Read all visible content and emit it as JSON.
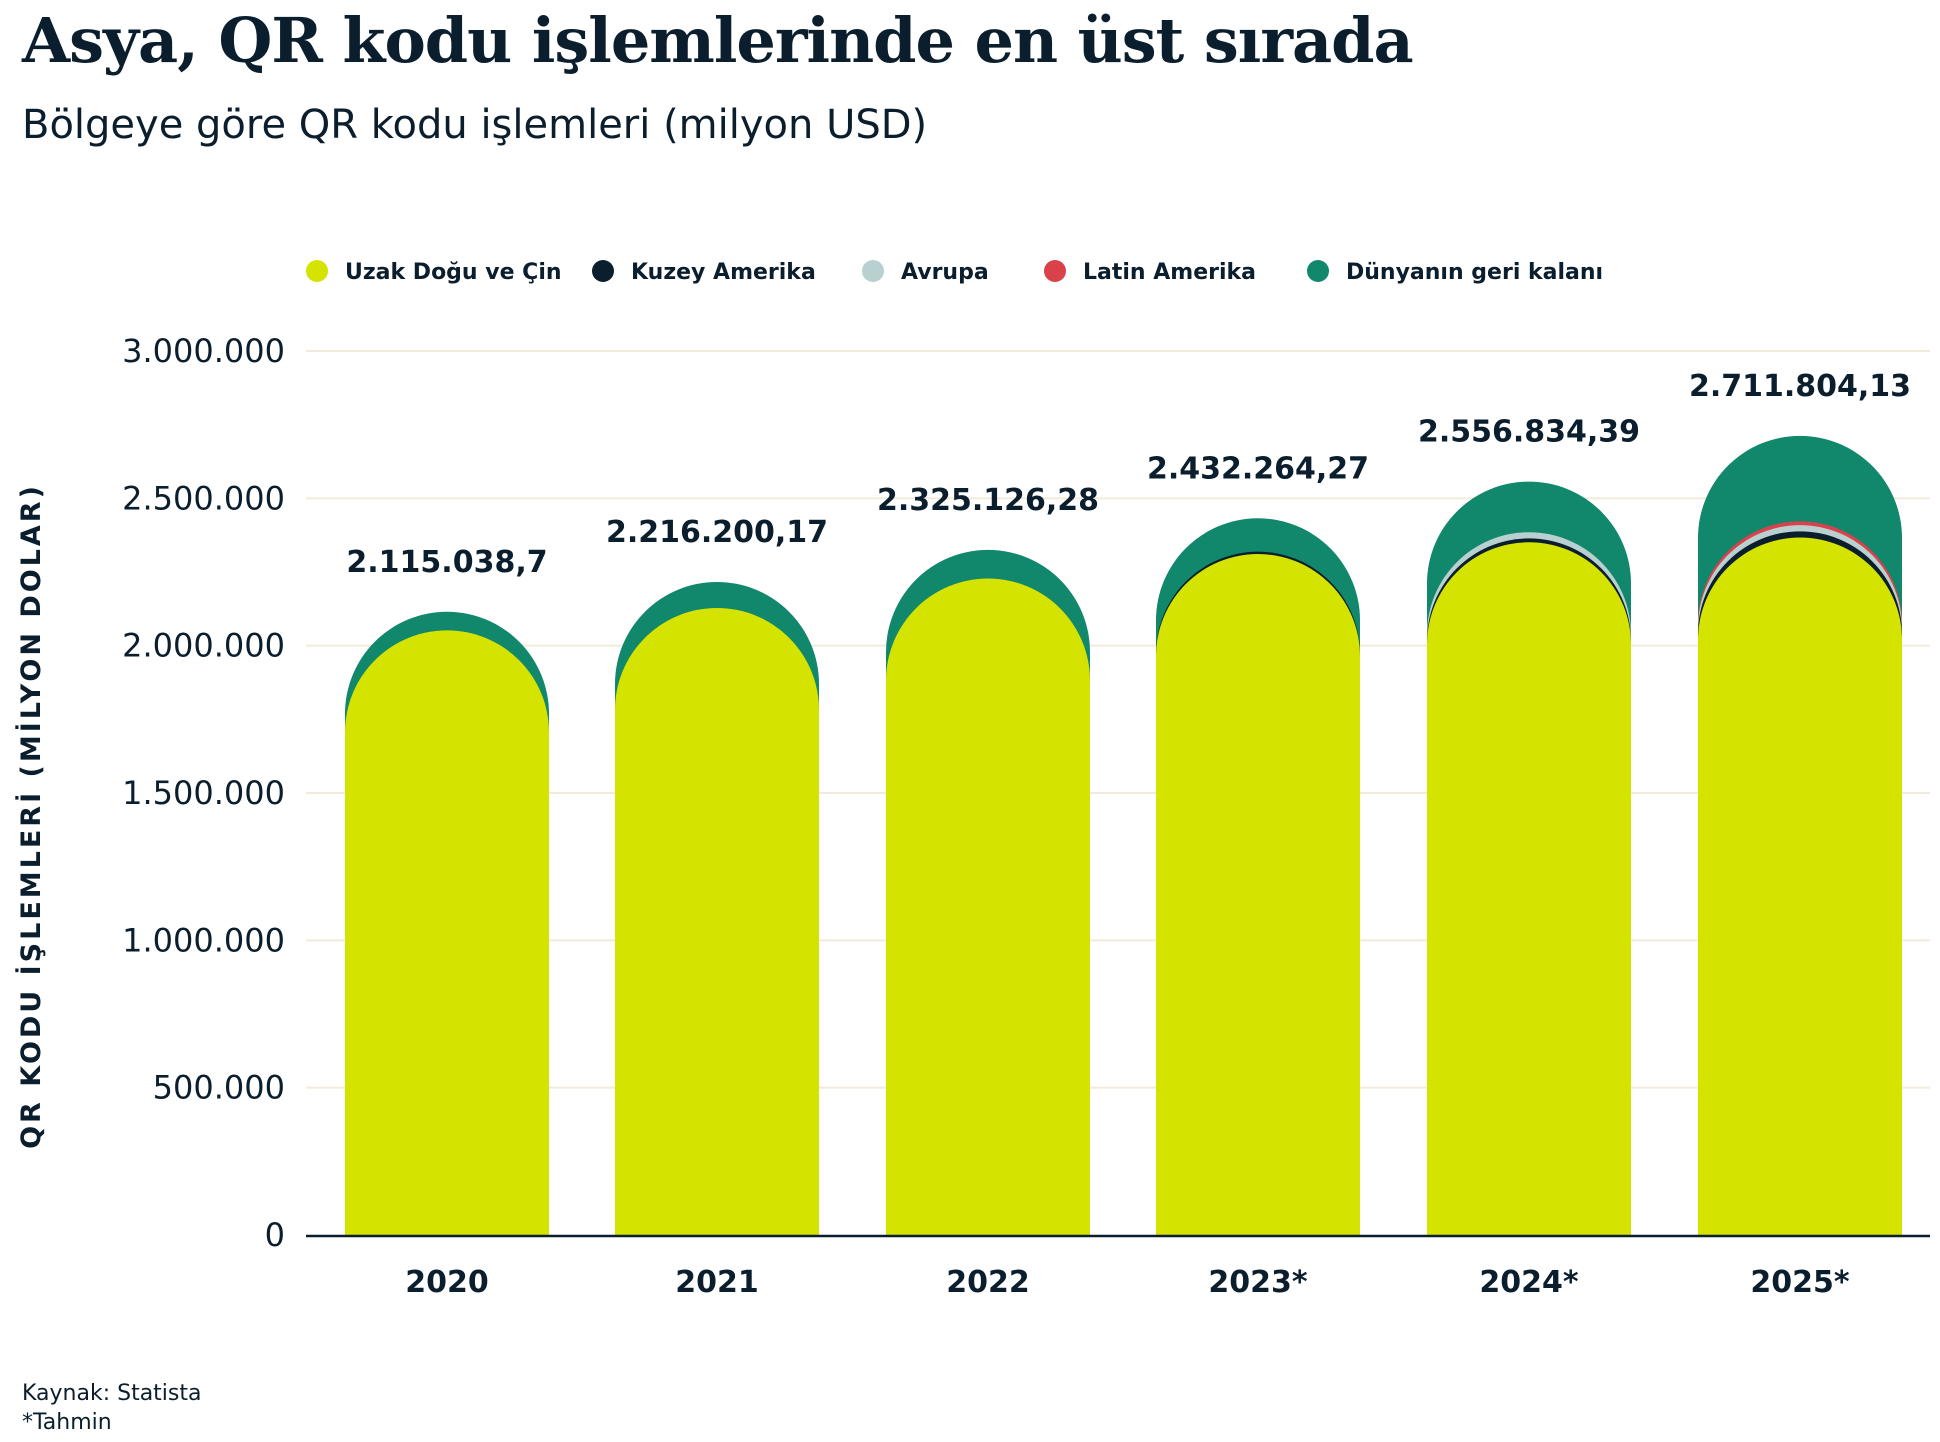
{
  "header": {
    "title": "Asya, QR kodu işlemlerinde en üst sırada",
    "subtitle": "Bölgeye göre QR kodu işlemleri (milyon USD)"
  },
  "footer": {
    "source": "Kaynak: Statista",
    "note": "*Tahmin"
  },
  "chart_data": {
    "type": "bar",
    "stacked": true,
    "title": "Asya, QR kodu işlemlerinde en üst sırada",
    "subtitle": "Bölgeye göre QR kodu işlemleri (milyon USD)",
    "xlabel": "",
    "ylabel": "QR KODU İŞLEMLERİ (MİLYON DOLAR)",
    "ylim": [
      0,
      3000000
    ],
    "yticks": [
      0,
      500000,
      1000000,
      1500000,
      2000000,
      2500000,
      3000000
    ],
    "ytick_labels": [
      "0",
      "500.000",
      "1.000.000",
      "1.500.000",
      "2.000.000",
      "2.500.000",
      "3.000.000"
    ],
    "grid": true,
    "legend_position": "top",
    "categories": [
      "2020",
      "2021",
      "2022",
      "2023*",
      "2024*",
      "2025*"
    ],
    "totals": [
      2115038.7,
      2216200.17,
      2325126.28,
      2432264.27,
      2556834.39,
      2711804.13
    ],
    "total_labels": [
      "2.115.038,7",
      "2.216.200,17",
      "2.325.126,28",
      "2.432.264,27",
      "2.556.834,39",
      "2.711.804,13"
    ],
    "series": [
      {
        "name": "Uzak Doğu ve Çin",
        "color": "#d4e300",
        "values": [
          2052000,
          2128000,
          2228000,
          2311000,
          2351000,
          2367000
        ]
      },
      {
        "name": "Kuzey Amerika",
        "color": "#0b1e2d",
        "values": [
          0,
          0,
          0,
          8000,
          13000,
          21000
        ]
      },
      {
        "name": "Avrupa",
        "color": "#b8d0cf",
        "values": [
          0,
          0,
          0,
          0,
          21000,
          21000
        ]
      },
      {
        "name": "Latin Amerika",
        "color": "#d9424b",
        "values": [
          0,
          0,
          0,
          0,
          0,
          13000
        ]
      },
      {
        "name": "Dünyanın geri kalanı",
        "color": "#11876b",
        "values": [
          63038.7,
          88200.17,
          97126.28,
          113264.27,
          171834.39,
          289804.13
        ]
      }
    ],
    "gridline_color": "#f1ebd9"
  }
}
